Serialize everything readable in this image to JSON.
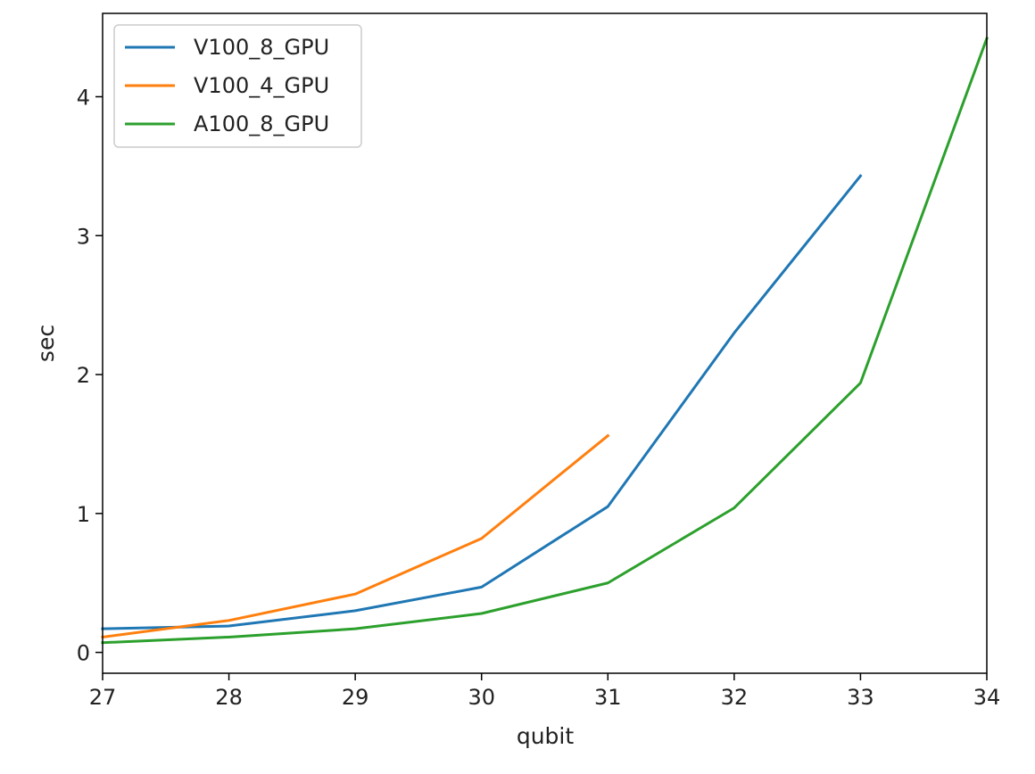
{
  "chart_data": {
    "type": "line",
    "title": "",
    "xlabel": "qubit",
    "ylabel": "sec",
    "xlim": [
      27,
      34
    ],
    "ylim": [
      -0.15,
      4.6
    ],
    "xticks": [
      27,
      28,
      29,
      30,
      31,
      32,
      33,
      34
    ],
    "yticks": [
      0,
      1,
      2,
      3,
      4
    ],
    "grid": false,
    "legend_position": "upper-left",
    "series": [
      {
        "name": "V100_8_GPU",
        "color": "#1f77b4",
        "x": [
          27,
          28,
          29,
          30,
          31,
          32,
          33
        ],
        "y": [
          0.17,
          0.19,
          0.3,
          0.47,
          1.05,
          2.3,
          3.43
        ]
      },
      {
        "name": "V100_4_GPU",
        "color": "#ff7f0e",
        "x": [
          27,
          28,
          29,
          30,
          31
        ],
        "y": [
          0.11,
          0.23,
          0.42,
          0.82,
          1.56
        ]
      },
      {
        "name": "A100_8_GPU",
        "color": "#2ca02c",
        "x": [
          27,
          28,
          29,
          30,
          31,
          32,
          33,
          34
        ],
        "y": [
          0.07,
          0.11,
          0.17,
          0.28,
          0.5,
          1.04,
          1.94,
          4.42
        ]
      }
    ]
  }
}
